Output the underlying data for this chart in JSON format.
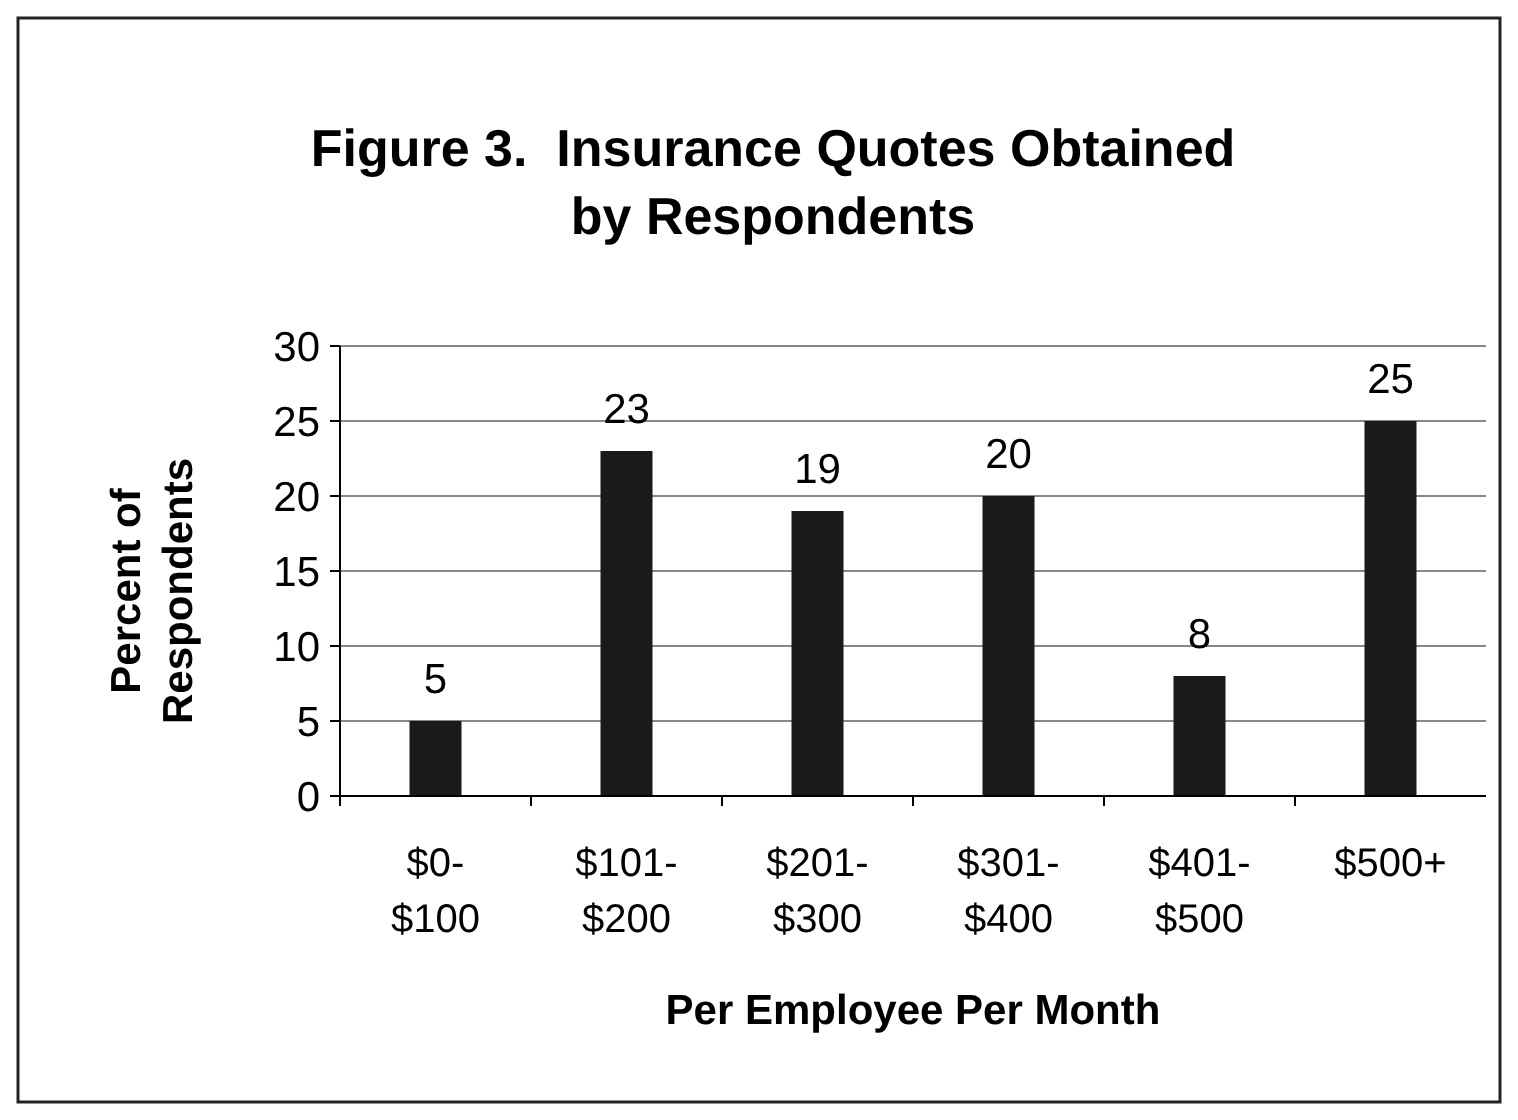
{
  "chart_data": {
    "type": "bar",
    "title": "Figure 3.  Insurance Quotes Obtained by Respondents",
    "categories": [
      "$0-$100",
      "$101-$200",
      "$201-$300",
      "$301-$400",
      "$401-$500",
      "$500+"
    ],
    "values": [
      5,
      23,
      19,
      20,
      8,
      25
    ],
    "color": "#1a1a1a",
    "ylim": [
      0,
      30
    ],
    "yticks": [
      0,
      5,
      10,
      15,
      20,
      25,
      30
    ],
    "grid": "y",
    "data_labels": true,
    "xlabel": "Per Employee Per Month",
    "ylabel": "Percent of Respondents"
  }
}
